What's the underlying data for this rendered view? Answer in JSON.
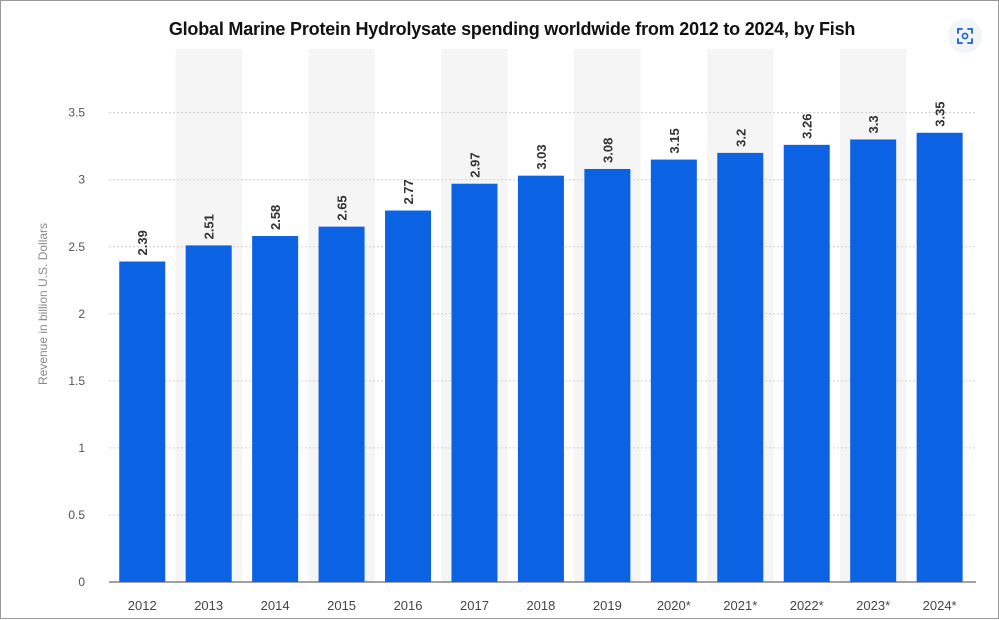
{
  "chart_data": {
    "type": "bar",
    "title": "Global Marine Protein Hydrolysate spending worldwide from 2012 to 2024, by Fish",
    "xlabel": "",
    "ylabel": "Revenue in billion U.S. Dollars",
    "categories": [
      "2012",
      "2013",
      "2014",
      "2015",
      "2016",
      "2017",
      "2018",
      "2019",
      "2020*",
      "2021*",
      "2022*",
      "2023*",
      "2024*"
    ],
    "values": [
      2.39,
      2.51,
      2.58,
      2.65,
      2.77,
      2.97,
      3.03,
      3.08,
      3.15,
      3.2,
      3.26,
      3.3,
      3.35
    ],
    "value_labels": [
      "2.39",
      "2.51",
      "2.58",
      "2.65",
      "2.77",
      "2.97",
      "3.03",
      "3.08",
      "3.15",
      "3.2",
      "3.26",
      "3.3",
      "3.35"
    ],
    "y_ticks": [
      0,
      0.5,
      1,
      1.5,
      2,
      2.5,
      3,
      3.5
    ],
    "y_tick_labels": [
      "0",
      "0.5",
      "1",
      "1.5",
      "2",
      "2.5",
      "3",
      "3.5"
    ],
    "ylim": [
      0,
      3.5
    ],
    "grid": true,
    "bar_color": "#0b62e3",
    "legend": "none"
  },
  "toolbar": {
    "expand_icon": "focus-icon"
  }
}
